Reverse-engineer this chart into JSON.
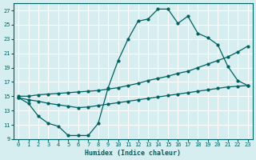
{
  "xlabel": "Humidex (Indice chaleur)",
  "bg_color": "#d6eef0",
  "grid_color": "#ffffff",
  "line_color": "#006060",
  "xlim": [
    -0.5,
    23.5
  ],
  "ylim": [
    9,
    28
  ],
  "xticks": [
    0,
    1,
    2,
    3,
    4,
    5,
    6,
    7,
    8,
    9,
    10,
    11,
    12,
    13,
    14,
    15,
    16,
    17,
    18,
    19,
    20,
    21,
    22,
    23
  ],
  "yticks": [
    9,
    11,
    13,
    15,
    17,
    19,
    21,
    23,
    25,
    27
  ],
  "line1_x": [
    0,
    1,
    2,
    3,
    4,
    5,
    6,
    7,
    8,
    9,
    10,
    11,
    12,
    13,
    14,
    15,
    16,
    17,
    18,
    19,
    20,
    21,
    22,
    23
  ],
  "line1_y": [
    14.8,
    14.0,
    12.2,
    11.2,
    10.8,
    9.5,
    9.5,
    9.5,
    11.2,
    16.2,
    20.0,
    23.0,
    25.5,
    25.8,
    27.2,
    27.2,
    25.2,
    26.2,
    23.8,
    23.2,
    22.2,
    19.2,
    17.2,
    16.5
  ],
  "line2_x": [
    0,
    1,
    2,
    3,
    4,
    5,
    6,
    7,
    8,
    9,
    10,
    11,
    12,
    13,
    14,
    15,
    16,
    17,
    18,
    19,
    20,
    21,
    22,
    23
  ],
  "line2_y": [
    15.0,
    15.0,
    15.2,
    15.3,
    15.4,
    15.5,
    15.6,
    15.7,
    15.8,
    16.0,
    16.2,
    16.5,
    16.8,
    17.2,
    17.5,
    17.8,
    18.2,
    18.5,
    19.0,
    19.5,
    20.0,
    20.5,
    21.2,
    22.0
  ],
  "line3_x": [
    0,
    1,
    2,
    3,
    4,
    5,
    6,
    7,
    8,
    9,
    10,
    11,
    12,
    13,
    14,
    15,
    16,
    17,
    18,
    19,
    20,
    21,
    22,
    23
  ],
  "line3_y": [
    14.8,
    14.5,
    14.3,
    14.0,
    13.8,
    13.6,
    13.4,
    13.5,
    13.7,
    13.9,
    14.1,
    14.3,
    14.5,
    14.7,
    14.9,
    15.1,
    15.3,
    15.5,
    15.7,
    15.9,
    16.1,
    16.3,
    16.4,
    16.5
  ]
}
